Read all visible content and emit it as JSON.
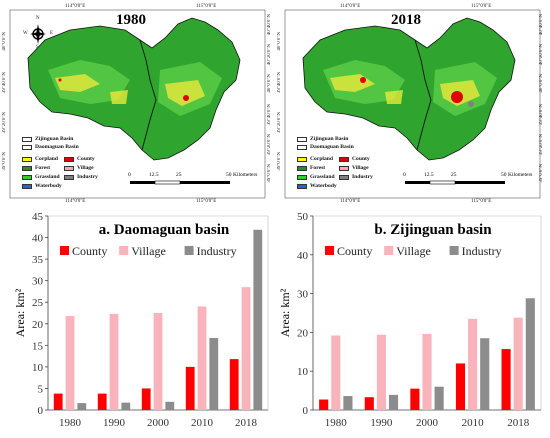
{
  "maps": [
    {
      "title": "1980"
    },
    {
      "title": "2018"
    }
  ],
  "map_labels": {
    "top_coords": [
      "114°0'0\"E",
      "115°0'0\"E"
    ],
    "bottom_coords": [
      "114°0'0\"E",
      "115°0'0\"E"
    ],
    "left_coords": [
      "40°0'0\"N",
      "39°40'0\"N",
      "39°20'0\"N",
      "39°0'0\"N"
    ],
    "right_coords": [
      "40°40'0\"N",
      "40°20'0\"N",
      "40°0'0\"N",
      "39°40'0\"N",
      "39°20'0\"N",
      "39°0'0\"N"
    ],
    "north": "N",
    "south": "S",
    "east": "E",
    "west": "W",
    "scale": {
      "ticks": [
        "0",
        "12.5",
        "25",
        "50"
      ],
      "unit": "Kilometers"
    },
    "legend": {
      "basins": [
        "Zijinguan Basin",
        "Daomaguan Basin"
      ],
      "classes": [
        {
          "label": "Corpland",
          "color": "#ffff00"
        },
        {
          "label": "County",
          "color": "#e00000"
        },
        {
          "label": "Forest",
          "color": "#2e8b2e"
        },
        {
          "label": "Village",
          "color": "#f4a8b0"
        },
        {
          "label": "Grassland",
          "color": "#33cc33"
        },
        {
          "label": "Industry",
          "color": "#808080"
        },
        {
          "label": "Waterbody",
          "color": "#1f66d6"
        }
      ]
    }
  },
  "chart_data": [
    {
      "type": "bar",
      "title": "a. Daomaguan basin",
      "ylabel": "Area: km²",
      "categories": [
        "1980",
        "1990",
        "2000",
        "2010",
        "2018"
      ],
      "ylim": [
        0,
        45
      ],
      "yticks": [
        0,
        5,
        10,
        15,
        20,
        25,
        30,
        35,
        40,
        45
      ],
      "series": [
        {
          "name": "County",
          "color": "#ff0000",
          "values": [
            3.8,
            3.8,
            5.0,
            10.0,
            11.8
          ]
        },
        {
          "name": "Village",
          "color": "#f9b3bb",
          "values": [
            21.8,
            22.3,
            22.5,
            24.0,
            28.5
          ]
        },
        {
          "name": "Industry",
          "color": "#8c8c8c",
          "values": [
            1.6,
            1.7,
            1.9,
            16.7,
            41.8
          ]
        }
      ]
    },
    {
      "type": "bar",
      "title": "b. Zijinguan basin",
      "ylabel": "Area: km²",
      "categories": [
        "1980",
        "1990",
        "2000",
        "2010",
        "2018"
      ],
      "ylim": [
        0,
        50
      ],
      "yticks": [
        0,
        10,
        20,
        30,
        40,
        50
      ],
      "series": [
        {
          "name": "County",
          "color": "#ff0000",
          "values": [
            2.7,
            3.3,
            5.5,
            12.0,
            15.7
          ]
        },
        {
          "name": "Village",
          "color": "#f9b3bb",
          "values": [
            19.2,
            19.4,
            19.6,
            23.5,
            23.8
          ]
        },
        {
          "name": "Industry",
          "color": "#8c8c8c",
          "values": [
            3.6,
            3.9,
            6.0,
            18.5,
            28.8
          ]
        }
      ]
    }
  ]
}
